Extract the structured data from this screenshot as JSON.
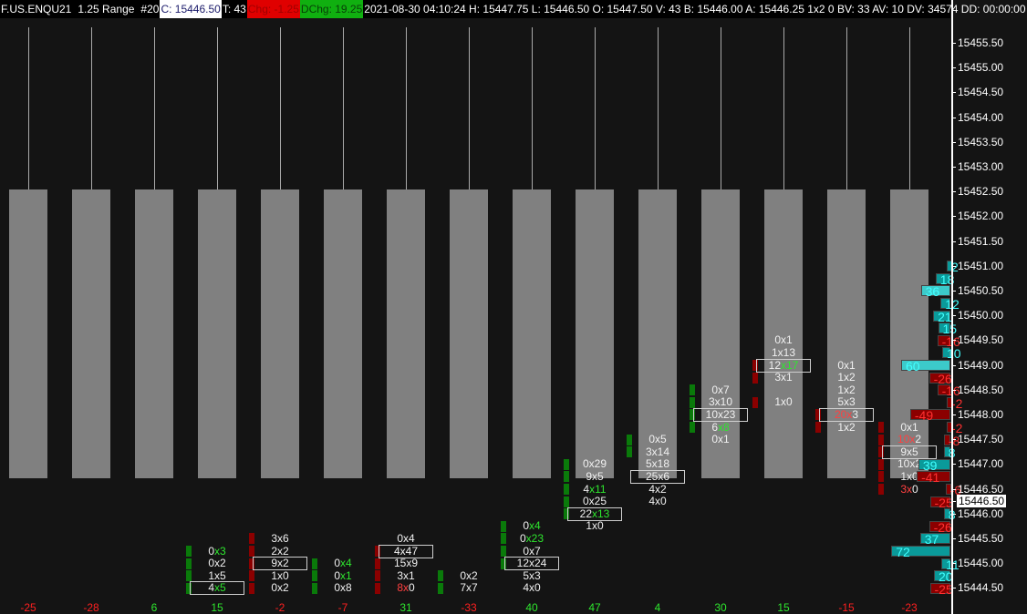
{
  "header": {
    "symbol": "F.US.ENQU21",
    "bar_type": "1.25 Range",
    "bar_number": "#20",
    "close": "C: 15446.50",
    "ticks": "T: 43",
    "change": "Chg: -1.25",
    "day_change": "DChg: 19.25",
    "stats": "2021-08-30 04:10:24 H: 15447.75 L: 15446.50 O: 15447.50 V: 43 B: 15446.00 A: 15446.25 1x2 0 BV: 33 AV: 10 DV: 34574 DD: 00:00:00"
  },
  "colors": {
    "background": "#141414",
    "candle": "#808080",
    "bid_highlight": "#ff4040",
    "ask_highlight": "#2ee62e",
    "buy_marker": "#0a7a0a",
    "sell_marker": "#8b0000",
    "profile_buy": "#0a9a9a",
    "profile_sell": "#8b0000"
  },
  "axis": {
    "labels": [
      "15455.50",
      "15455.00",
      "15454.50",
      "15454.00",
      "15453.50",
      "15453.00",
      "15452.50",
      "15452.00",
      "15451.50",
      "15451.00",
      "15450.50",
      "15450.00",
      "15449.50",
      "15449.00",
      "15448.50",
      "15448.00",
      "15447.50",
      "15447.00",
      "15446.50",
      "15446.00",
      "15445.50",
      "15445.00",
      "15444.50"
    ],
    "current_price": "15446.50"
  },
  "bars": [
    {
      "delta": "-25",
      "cells": [],
      "marker": null
    },
    {
      "delta": "-28",
      "cells": [],
      "marker": null
    },
    {
      "delta": "6",
      "cells": [],
      "marker": null
    },
    {
      "delta": "15",
      "marker": {
        "side": "buy",
        "prices": [
          15445.25,
          15445.0,
          15444.75,
          15444.5
        ]
      },
      "cells": [
        {
          "p": 15445.25,
          "bid": "0",
          "ask": "3",
          "hl": "ask"
        },
        {
          "p": 15445.0,
          "bid": "0",
          "ask": "2"
        },
        {
          "p": 15444.75,
          "bid": "1",
          "ask": "5"
        },
        {
          "p": 15444.5,
          "bid": "4",
          "ask": "5",
          "hl": "ask",
          "box": true
        }
      ]
    },
    {
      "delta": "-2",
      "marker": {
        "side": "sell",
        "prices": [
          15445.5,
          15445.25,
          15445.0,
          15444.75,
          15444.5
        ]
      },
      "cells": [
        {
          "p": 15445.5,
          "bid": "3",
          "ask": "6"
        },
        {
          "p": 15445.25,
          "bid": "2",
          "ask": "2"
        },
        {
          "p": 15445.0,
          "bid": "9",
          "ask": "2",
          "box": true
        },
        {
          "p": 15444.75,
          "bid": "1",
          "ask": "0"
        },
        {
          "p": 15444.5,
          "bid": "0",
          "ask": "2"
        }
      ]
    },
    {
      "delta": "-7",
      "marker": {
        "side": "buy",
        "prices": [
          15445.0,
          15444.75,
          15444.5
        ]
      },
      "cells": [
        {
          "p": 15445.0,
          "bid": "0",
          "ask": "4",
          "hl": "ask"
        },
        {
          "p": 15444.75,
          "bid": "0",
          "ask": "1",
          "hl": "ask"
        },
        {
          "p": 15444.5,
          "bid": "0",
          "ask": "8"
        }
      ]
    },
    {
      "delta": "31",
      "marker": {
        "side": "sell",
        "prices": [
          15445.25,
          15445.0,
          15444.75,
          15444.5
        ]
      },
      "cells": [
        {
          "p": 15445.5,
          "bid": "0",
          "ask": "4"
        },
        {
          "p": 15445.25,
          "bid": "4",
          "ask": "47",
          "box": true
        },
        {
          "p": 15445.0,
          "bid": "15",
          "ask": "9"
        },
        {
          "p": 15444.75,
          "bid": "3",
          "ask": "1"
        },
        {
          "p": 15444.5,
          "bid": "8",
          "ask": "0",
          "hl": "bid"
        }
      ]
    },
    {
      "delta": "-33",
      "marker": {
        "side": "buy",
        "prices": [
          15444.75,
          15444.5
        ]
      },
      "cells": [
        {
          "p": 15444.75,
          "bid": "0",
          "ask": "2"
        },
        {
          "p": 15444.5,
          "bid": "7",
          "ask": "7"
        }
      ]
    },
    {
      "delta": "40",
      "marker": {
        "side": "buy",
        "prices": [
          15445.75,
          15445.5,
          15445.25,
          15445.0
        ]
      },
      "cells": [
        {
          "p": 15445.75,
          "bid": "0",
          "ask": "4",
          "hl": "ask"
        },
        {
          "p": 15445.5,
          "bid": "0",
          "ask": "23",
          "hl": "ask"
        },
        {
          "p": 15445.25,
          "bid": "0",
          "ask": "7"
        },
        {
          "p": 15445.0,
          "bid": "12",
          "ask": "24",
          "box": true
        },
        {
          "p": 15444.75,
          "bid": "5",
          "ask": "3"
        },
        {
          "p": 15444.5,
          "bid": "4",
          "ask": "0"
        }
      ]
    },
    {
      "delta": "47",
      "open": 15447.0,
      "marker": {
        "side": "buy",
        "prices": [
          15447.0,
          15446.75,
          15446.5,
          15446.25,
          15446.0
        ]
      },
      "cells": [
        {
          "p": 15447.0,
          "bid": "0",
          "ask": "29"
        },
        {
          "p": 15446.75,
          "bid": "9",
          "ask": "5"
        },
        {
          "p": 15446.5,
          "bid": "4",
          "ask": "11",
          "hl": "ask"
        },
        {
          "p": 15446.25,
          "bid": "0",
          "ask": "25"
        },
        {
          "p": 15446.0,
          "bid": "22",
          "ask": "13",
          "hl": "ask",
          "box": true
        },
        {
          "p": 15445.75,
          "bid": "1",
          "ask": "0"
        }
      ]
    },
    {
      "delta": "4",
      "marker": {
        "side": "buy",
        "prices": [
          15447.5,
          15447.25
        ]
      },
      "cells": [
        {
          "p": 15447.5,
          "bid": "0",
          "ask": "5"
        },
        {
          "p": 15447.25,
          "bid": "3",
          "ask": "14"
        },
        {
          "p": 15447.0,
          "bid": "5",
          "ask": "18"
        },
        {
          "p": 15446.75,
          "bid": "25",
          "ask": "6",
          "box": true
        },
        {
          "p": 15446.5,
          "bid": "4",
          "ask": "2"
        },
        {
          "p": 15446.25,
          "bid": "4",
          "ask": "0"
        }
      ]
    },
    {
      "delta": "30",
      "marker": {
        "side": "buy",
        "prices": [
          15448.5,
          15448.25,
          15448.0,
          15447.75
        ]
      },
      "cells": [
        {
          "p": 15448.5,
          "bid": "0",
          "ask": "7"
        },
        {
          "p": 15448.25,
          "bid": "3",
          "ask": "10"
        },
        {
          "p": 15448.0,
          "bid": "10",
          "ask": "23",
          "box": true
        },
        {
          "p": 15447.75,
          "bid": "6",
          "ask": "8",
          "hl": "ask"
        },
        {
          "p": 15447.5,
          "bid": "0",
          "ask": "1"
        }
      ]
    },
    {
      "delta": "15",
      "marker": {
        "side": "sell",
        "prices": [
          15449.0,
          15448.75,
          15448.25
        ]
      },
      "cells": [
        {
          "p": 15449.5,
          "bid": "0",
          "ask": "1"
        },
        {
          "p": 15449.25,
          "bid": "1",
          "ask": "13"
        },
        {
          "p": 15449.0,
          "bid": "12",
          "ask": "17",
          "hl": "ask",
          "box": true
        },
        {
          "p": 15448.75,
          "bid": "3",
          "ask": "1"
        },
        {
          "p": 15448.25,
          "bid": "1",
          "ask": "0"
        }
      ]
    },
    {
      "delta": "-15",
      "marker": {
        "side": "sell",
        "prices": [
          15448.0,
          15447.75
        ]
      },
      "cells": [
        {
          "p": 15449.0,
          "bid": "0",
          "ask": "1"
        },
        {
          "p": 15448.75,
          "bid": "1",
          "ask": "2"
        },
        {
          "p": 15448.5,
          "bid": "1",
          "ask": "2"
        },
        {
          "p": 15448.25,
          "bid": "5",
          "ask": "3"
        },
        {
          "p": 15448.0,
          "bid": "20",
          "ask": "3",
          "hl": "bid",
          "box": true
        },
        {
          "p": 15447.75,
          "bid": "1",
          "ask": "2"
        }
      ]
    },
    {
      "delta": "-23",
      "marker": {
        "side": "sell",
        "prices": [
          15447.75,
          15447.5,
          15447.25,
          15447.0,
          15446.75,
          15446.5
        ]
      },
      "cells": [
        {
          "p": 15447.75,
          "bid": "0",
          "ask": "1"
        },
        {
          "p": 15447.5,
          "bid": "10",
          "ask": "2",
          "hl": "bid"
        },
        {
          "p": 15447.25,
          "bid": "9",
          "ask": "5",
          "box": true
        },
        {
          "p": 15447.0,
          "bid": "10",
          "ask": "2"
        },
        {
          "p": 15446.75,
          "bid": "1",
          "ask": "0"
        },
        {
          "p": 15446.5,
          "bid": "3",
          "ask": "0",
          "hl": "bid"
        }
      ]
    }
  ],
  "volume_profile": [
    {
      "p": 15451.0,
      "v": 2
    },
    {
      "p": 15450.75,
      "v": 18
    },
    {
      "p": 15450.5,
      "v": 36,
      "hl": true
    },
    {
      "p": 15450.25,
      "v": 12
    },
    {
      "p": 15450.0,
      "v": 21
    },
    {
      "p": 15449.75,
      "v": 15
    },
    {
      "p": 15449.5,
      "v": -16
    },
    {
      "p": 15449.25,
      "v": 10
    },
    {
      "p": 15449.0,
      "v": 60,
      "hl": true
    },
    {
      "p": 15448.75,
      "v": -26
    },
    {
      "p": 15448.5,
      "v": -16
    },
    {
      "p": 15448.25,
      "v": -2
    },
    {
      "p": 15448.0,
      "v": -49
    },
    {
      "p": 15447.75,
      "v": -2
    },
    {
      "p": 15447.5,
      "v": -8
    },
    {
      "p": 15447.25,
      "v": 8
    },
    {
      "p": 15447.0,
      "v": 39
    },
    {
      "p": 15446.75,
      "v": -41
    },
    {
      "p": 15446.5,
      "v": -6
    },
    {
      "p": 15446.25,
      "v": -25
    },
    {
      "p": 15446.0,
      "v": 8
    },
    {
      "p": 15445.75,
      "v": -26
    },
    {
      "p": 15445.5,
      "v": 37
    },
    {
      "p": 15445.25,
      "v": 72
    },
    {
      "p": 15445.0,
      "v": 11
    },
    {
      "p": 15444.75,
      "v": 20
    },
    {
      "p": 15444.5,
      "v": -25
    }
  ]
}
